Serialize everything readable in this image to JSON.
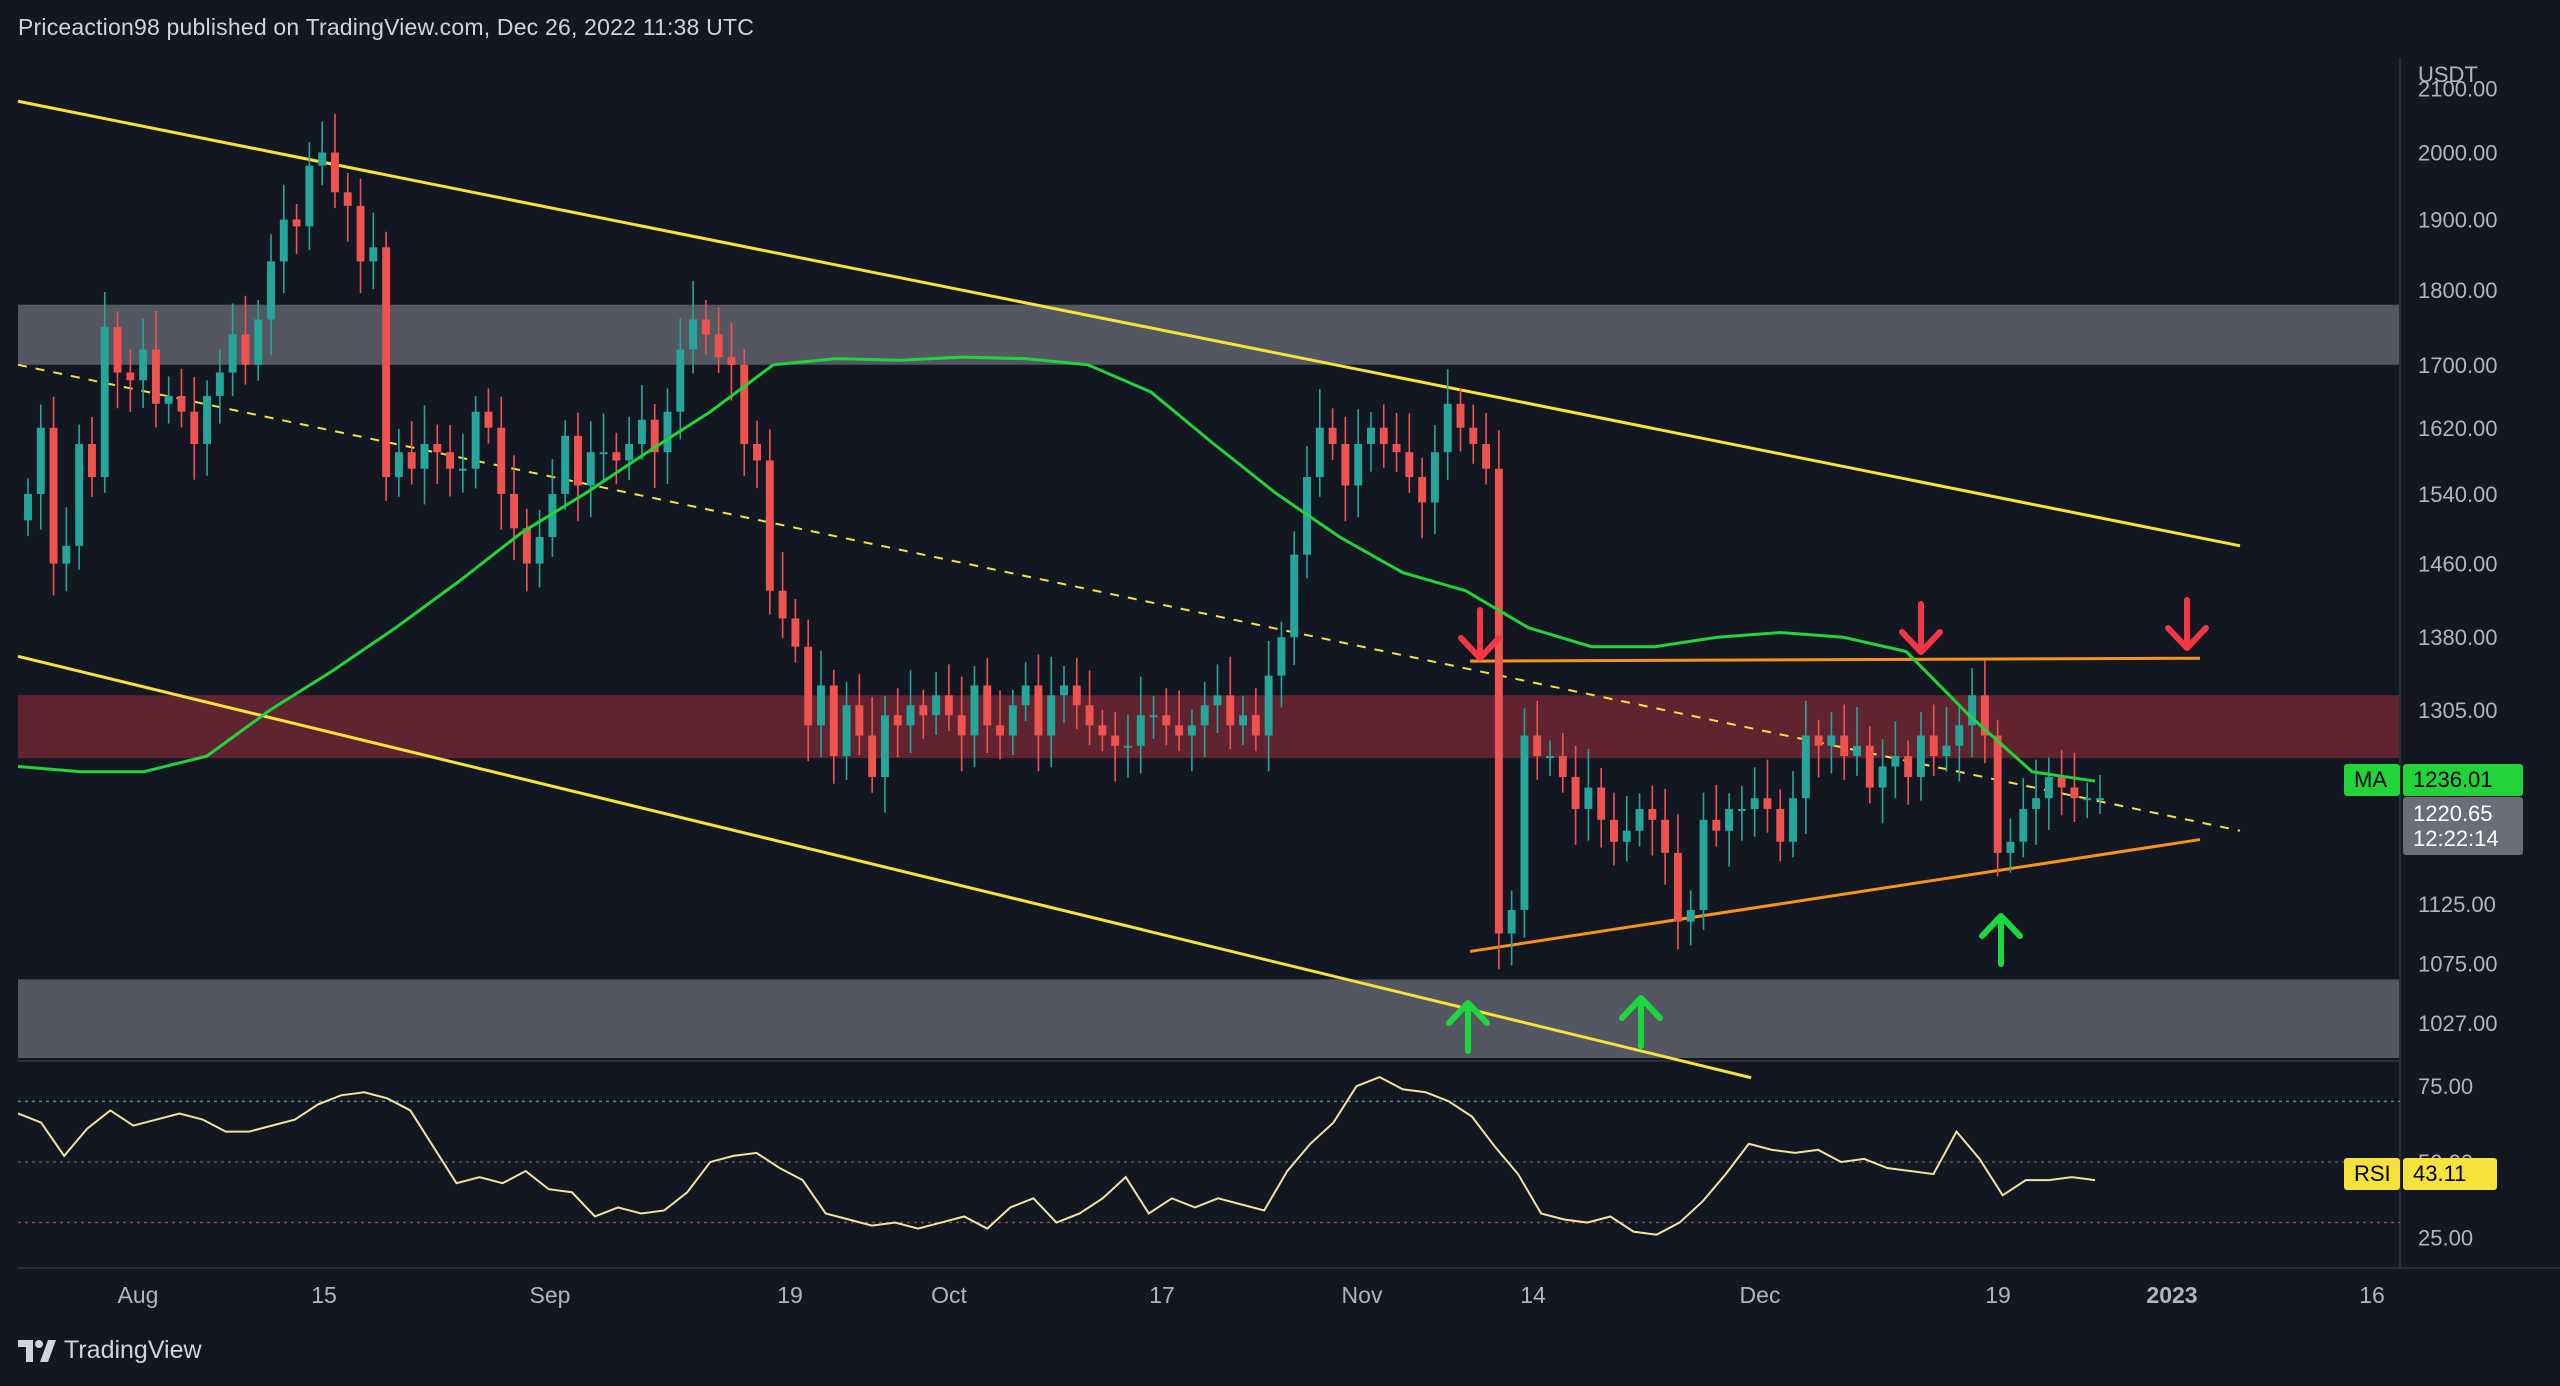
{
  "header": {
    "attribution": "Priceaction98 published on TradingView.com, Dec 26, 2022 11:38 UTC"
  },
  "footer": {
    "brand": "TradingView"
  },
  "colors": {
    "background": "#131722",
    "up": "#26a69a",
    "down": "#ef5350",
    "ma": "#22d33a",
    "channel": "#f5e23a",
    "triangle": "#f7931a",
    "resistance_zone": "#7a2a34",
    "support_zone": "#6b6e78",
    "rsi": "#f1e3a0",
    "arrow_up": "#1bd83f",
    "arrow_down": "#f23645"
  },
  "chart_data": [
    {
      "type": "candlestick",
      "symbol_quote": "USDT",
      "y_axis_ticks": [
        "2100.00",
        "2000.00",
        "1900.00",
        "1800.00",
        "1700.00",
        "1620.00",
        "1540.00",
        "1460.00",
        "1380.00",
        "1305.00",
        "1125.00",
        "1075.00",
        "1027.00"
      ],
      "x_axis_ticks": [
        "Aug",
        "15",
        "Sep",
        "19",
        "Oct",
        "17",
        "Nov",
        "14",
        "Dec",
        "19",
        "2023",
        "16"
      ],
      "scale": "log",
      "ylim": [
        1000,
        2150
      ],
      "date_range": [
        "2022-07-24",
        "2022-12-26"
      ],
      "ma": {
        "label": "MA",
        "value": "1236.01"
      },
      "last_price": {
        "value": "1220.65",
        "countdown": "12:22:14"
      },
      "closes": [
        1540,
        1620,
        1460,
        1480,
        1600,
        1560,
        1750,
        1690,
        1680,
        1720,
        1650,
        1660,
        1640,
        1600,
        1660,
        1690,
        1740,
        1700,
        1760,
        1840,
        1900,
        1890,
        1980,
        2000,
        1940,
        1920,
        1840,
        1860,
        1560,
        1590,
        1570,
        1600,
        1590,
        1570,
        1570,
        1640,
        1620,
        1540,
        1500,
        1460,
        1490,
        1540,
        1610,
        1550,
        1590,
        1590,
        1580,
        1600,
        1630,
        1590,
        1640,
        1720,
        1760,
        1740,
        1710,
        1700,
        1600,
        1580,
        1430,
        1400,
        1370,
        1290,
        1330,
        1260,
        1310,
        1280,
        1240,
        1300,
        1290,
        1310,
        1300,
        1320,
        1300,
        1280,
        1330,
        1290,
        1280,
        1310,
        1330,
        1280,
        1320,
        1330,
        1310,
        1290,
        1280,
        1270,
        1270,
        1300,
        1300,
        1290,
        1280,
        1290,
        1310,
        1320,
        1290,
        1300,
        1280,
        1340,
        1380,
        1470,
        1560,
        1620,
        1600,
        1550,
        1600,
        1620,
        1600,
        1590,
        1560,
        1530,
        1590,
        1650,
        1620,
        1600,
        1570,
        1100,
        1120,
        1280,
        1260,
        1260,
        1240,
        1210,
        1230,
        1200,
        1180,
        1190,
        1210,
        1200,
        1170,
        1110,
        1120,
        1200,
        1190,
        1210,
        1210,
        1220,
        1210,
        1180,
        1220,
        1280,
        1270,
        1280,
        1260,
        1270,
        1230,
        1250,
        1260,
        1240,
        1280,
        1260,
        1270,
        1290,
        1320,
        1280,
        1170,
        1180,
        1210,
        1220,
        1240,
        1230,
        1220,
        1220,
        1220
      ],
      "ma_series": [
        1250,
        1245,
        1245,
        1260,
        1305,
        1345,
        1390,
        1440,
        1495,
        1540,
        1590,
        1640,
        1700,
        1708,
        1706,
        1710,
        1708,
        1700,
        1665,
        1600,
        1540,
        1490,
        1450,
        1430,
        1390,
        1370,
        1370,
        1380,
        1385,
        1380,
        1365,
        1300,
        1245,
        1236
      ],
      "channel_upper": [
        [
          0,
          2080
        ],
        [
          1.0,
          1480
        ]
      ],
      "channel_lower": [
        [
          0,
          1360
        ],
        [
          0.78,
          985
        ]
      ],
      "midline": [
        [
          0,
          1700
        ],
        [
          1.0,
          1190
        ]
      ]
    },
    {
      "type": "line",
      "name": "RSI",
      "value": "43.11",
      "y_axis_ticks": [
        "75.00",
        "50.00",
        "25.00"
      ],
      "ylim": [
        15,
        82
      ],
      "bands": [
        70,
        50,
        30
      ],
      "values": [
        66,
        63,
        52,
        61,
        67,
        62,
        64,
        66,
        64,
        60,
        60,
        62,
        64,
        69,
        72,
        73,
        71,
        67,
        55,
        43,
        45,
        43,
        47,
        41,
        40,
        32,
        35,
        33,
        34,
        40,
        50,
        52,
        53,
        48,
        44,
        33,
        31,
        29,
        30,
        28,
        30,
        32,
        28,
        35,
        38,
        30,
        33,
        38,
        45,
        33,
        38,
        35,
        38,
        36,
        34,
        47,
        56,
        63,
        75,
        78,
        74,
        73,
        70,
        65,
        55,
        46,
        33,
        31,
        30,
        32,
        27,
        26,
        30,
        37,
        46,
        56,
        54,
        53,
        54,
        50,
        51,
        48,
        47,
        46,
        60,
        51,
        39,
        44,
        44,
        45,
        44
      ]
    }
  ]
}
